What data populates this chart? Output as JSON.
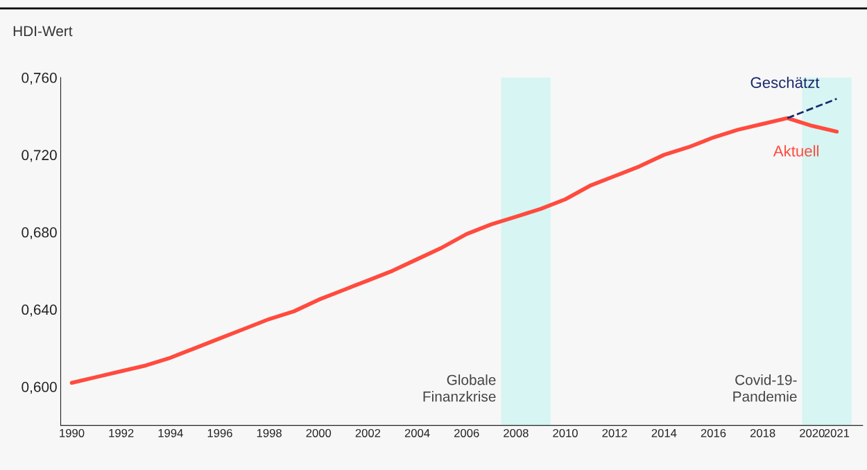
{
  "chart_data": {
    "type": "line",
    "ylabel": "HDI-Wert",
    "x": [
      1990,
      1991,
      1992,
      1993,
      1994,
      1995,
      1996,
      1997,
      1998,
      1999,
      2000,
      2001,
      2002,
      2003,
      2004,
      2005,
      2006,
      2007,
      2008,
      2009,
      2010,
      2011,
      2012,
      2013,
      2014,
      2015,
      2016,
      2017,
      2018,
      2019,
      2020,
      2021
    ],
    "series": [
      {
        "name": "Aktuell",
        "color": "#ff4b3e",
        "line_style": "solid",
        "values": [
          0.602,
          0.605,
          0.608,
          0.611,
          0.615,
          0.62,
          0.625,
          0.63,
          0.635,
          0.639,
          0.645,
          0.65,
          0.655,
          0.66,
          0.666,
          0.672,
          0.679,
          0.684,
          0.688,
          0.692,
          0.697,
          0.704,
          0.709,
          0.714,
          0.72,
          0.724,
          0.729,
          0.733,
          0.736,
          0.739,
          0.735,
          0.732
        ]
      },
      {
        "name": "Geschätzt",
        "color": "#1a2a6c",
        "line_style": "dashed",
        "x": [
          2019,
          2021
        ],
        "values": [
          0.739,
          0.749
        ]
      }
    ],
    "xlim": [
      1989.55,
      2022.05
    ],
    "xticks": [
      1990,
      1992,
      1994,
      1996,
      1998,
      2000,
      2002,
      2004,
      2006,
      2008,
      2010,
      2012,
      2014,
      2016,
      2018,
      2020,
      2021
    ],
    "ylim": [
      0.58,
      0.76
    ],
    "yticks": [
      {
        "value": 0.6,
        "label": "0,600"
      },
      {
        "value": 0.64,
        "label": "0,640"
      },
      {
        "value": 0.68,
        "label": "0,680"
      },
      {
        "value": 0.72,
        "label": "0,720"
      },
      {
        "value": 0.76,
        "label": "0,760"
      }
    ],
    "bands": [
      {
        "axis": "x",
        "from": 2007.4,
        "to": 2009.4,
        "label": "Globale\nFinanzkrise",
        "color": "#d6f5f3"
      },
      {
        "axis": "x",
        "from": 2019.6,
        "to": 2021.6,
        "label": "Covid-19-\nPandemie",
        "color": "#d6f5f3"
      }
    ],
    "grid": false,
    "legend": false,
    "marker": "none"
  }
}
